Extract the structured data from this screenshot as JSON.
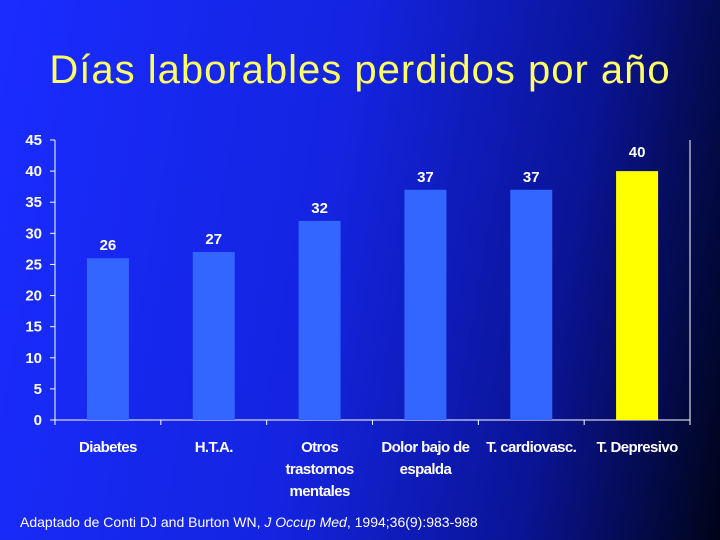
{
  "slide": {
    "title": "Días laborables perdidos por año",
    "citation": {
      "prefix": "Adaptado de Conti DJ and Burton WN, ",
      "journal": "J Occup Med",
      "suffix": ", 1994;36(9):983-988"
    }
  },
  "chart_data": {
    "type": "bar",
    "categories": [
      [
        "Diabetes"
      ],
      [
        "H.T.A."
      ],
      [
        "Otros",
        "trastornos",
        "mentales"
      ],
      [
        "Dolor bajo de",
        "espalda"
      ],
      [
        "T. cardiovasc."
      ],
      [
        "T. Depresivo"
      ]
    ],
    "values": [
      26,
      27,
      32,
      37,
      37,
      40
    ],
    "ylim": [
      0,
      45
    ],
    "yticks": [
      0,
      5,
      10,
      15,
      20,
      25,
      30,
      35,
      40,
      45
    ],
    "grid": false,
    "legend": "none",
    "colors": {
      "bar": "#3366ff",
      "highlight_bar": "#ffff00",
      "highlight_index": 5,
      "axis": "#ffffff"
    }
  }
}
